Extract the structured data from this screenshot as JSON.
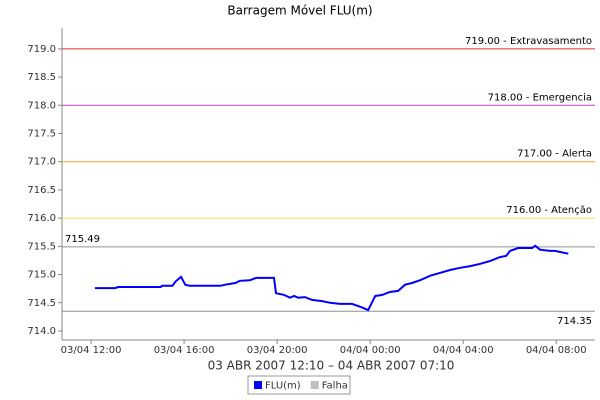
{
  "chart_data": {
    "type": "line",
    "title": "Barragem Móvel FLU(m)",
    "x_label": "03 ABR 2007 12:10 – 04 ABR 2007 07:10",
    "series": [
      {
        "name": "FLU(m)",
        "color": "#0000ff",
        "x": [
          "03/04 12:10",
          "03/04 13:02",
          "03/04 13:10",
          "03/04 15:00",
          "03/04 15:03",
          "03/04 15:30",
          "03/04 15:37",
          "03/04 15:52",
          "03/04 16:03",
          "03/04 16:15",
          "03/04 17:33",
          "03/04 17:46",
          "03/04 18:12",
          "03/04 18:24",
          "03/04 18:50",
          "03/04 19:06",
          "03/04 19:52",
          "03/04 19:57",
          "03/04 20:18",
          "03/04 20:33",
          "03/04 20:44",
          "03/04 20:54",
          "03/04 21:12",
          "03/04 21:30",
          "03/04 21:56",
          "03/04 22:17",
          "03/04 22:42",
          "03/04 23:13",
          "03/04 23:34",
          "03/04 23:55",
          "04/04 00:13",
          "04/04 00:31",
          "04/04 00:51",
          "04/04 01:12",
          "04/04 01:30",
          "04/04 01:48",
          "04/04 02:09",
          "04/04 02:35",
          "04/04 03:00",
          "04/04 03:26",
          "04/04 03:52",
          "04/04 04:18",
          "04/04 04:44",
          "04/04 05:09",
          "04/04 05:35",
          "04/04 05:51",
          "04/04 06:01",
          "04/04 06:22",
          "04/04 06:58",
          "04/04 07:06",
          "04/04 07:18",
          "04/04 07:44",
          "04/04 07:57",
          "04/04 08:10",
          "04/04 08:31"
        ],
        "values": [
          714.76,
          714.76,
          714.78,
          714.78,
          714.8,
          714.8,
          714.87,
          714.96,
          714.82,
          714.8,
          714.8,
          714.82,
          714.85,
          714.89,
          714.9,
          714.94,
          714.94,
          714.67,
          714.64,
          714.59,
          714.62,
          714.59,
          714.6,
          714.55,
          714.53,
          714.5,
          714.48,
          714.48,
          714.43,
          714.37,
          714.62,
          714.64,
          714.69,
          714.71,
          714.82,
          714.85,
          714.9,
          714.98,
          715.03,
          715.08,
          715.12,
          715.15,
          715.19,
          715.24,
          715.31,
          715.33,
          715.42,
          715.47,
          715.47,
          715.51,
          715.44,
          715.42,
          715.42,
          715.4,
          715.37
        ]
      },
      {
        "name": "Falha",
        "color": "#c0c0c0",
        "x": [],
        "values": []
      }
    ],
    "reference_lines": [
      {
        "value": 719.0,
        "label": "719.00 - Extravasamento",
        "color": "#e03030",
        "anchor": "right-above"
      },
      {
        "value": 718.0,
        "label": "718.00 - Emergencia",
        "color": "#c040c0",
        "anchor": "right-above"
      },
      {
        "value": 717.0,
        "label": "717.00 - Alerta",
        "color": "#f0a030",
        "anchor": "right-above"
      },
      {
        "value": 716.0,
        "label": "716.00 - Atenção",
        "color": "#f0e040",
        "anchor": "right-above"
      },
      {
        "value": 715.49,
        "label": "715.49",
        "color": "#909090",
        "anchor": "left-above"
      },
      {
        "value": 714.35,
        "label": "714.35",
        "color": "#909090",
        "anchor": "right-below"
      }
    ],
    "xlim": [
      "03/04 10:45",
      "04/04 09:40"
    ],
    "xticks": [
      "03/04 12:00",
      "03/04 16:00",
      "03/04 20:00",
      "04/04 00:00",
      "04/04 04:00",
      "04/04 08:00"
    ],
    "ylim": [
      713.84,
      719.37
    ],
    "yticks": [
      {
        "value": 714,
        "label": "714.0"
      },
      714.5,
      {
        "value": 715,
        "label": "715.0"
      },
      715.5,
      {
        "value": 716,
        "label": "716.0"
      },
      716.5,
      {
        "value": 717,
        "label": "717.0"
      },
      717.5,
      {
        "value": 718,
        "label": "718.0"
      },
      718.5,
      {
        "value": 719,
        "label": "719.0"
      }
    ]
  }
}
